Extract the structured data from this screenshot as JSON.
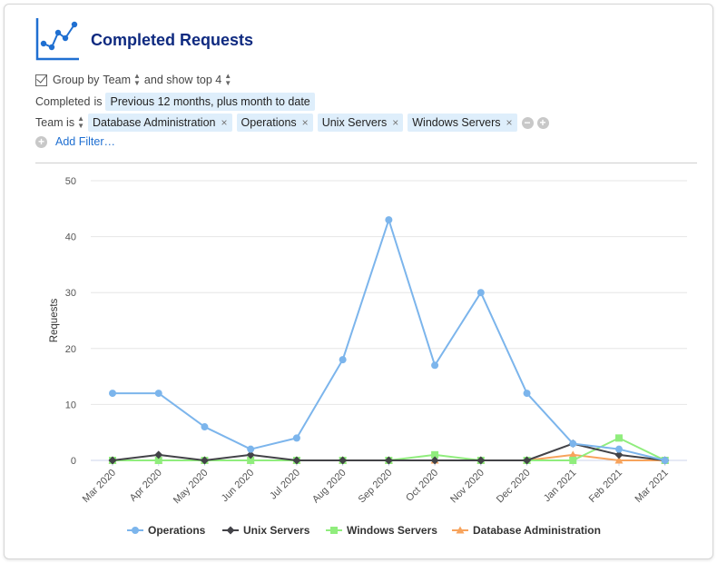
{
  "header": {
    "title": "Completed Requests",
    "icon": "line-chart-icon"
  },
  "group_row": {
    "prefix": "Group by",
    "group_value": "Team",
    "middle": "and show",
    "top_value": "top 4"
  },
  "completed_row": {
    "label": "Completed",
    "operator": "is",
    "value": "Previous 12 months, plus month to date"
  },
  "team_row": {
    "field": "Team is",
    "filters": [
      "Database Administration",
      "Operations",
      "Unix Servers",
      "Windows Servers"
    ],
    "remove_symbol": "×"
  },
  "add_filter_label": "Add Filter…",
  "chart_data": {
    "type": "line",
    "title": "",
    "xlabel": "",
    "ylabel": "Requests",
    "ylim": [
      0,
      50
    ],
    "yticks": [
      0,
      10,
      20,
      30,
      40,
      50
    ],
    "grid": true,
    "legend_position": "bottom",
    "categories": [
      "Mar 2020",
      "Apr 2020",
      "May 2020",
      "Jun 2020",
      "Jul 2020",
      "Aug 2020",
      "Sep 2020",
      "Oct 2020",
      "Nov 2020",
      "Dec 2020",
      "Jan 2021",
      "Feb 2021",
      "Mar 2021"
    ],
    "series": [
      {
        "name": "Operations",
        "color": "#7cb5ec",
        "marker": "circle",
        "values": [
          12,
          12,
          6,
          2,
          4,
          18,
          43,
          17,
          30,
          12,
          3,
          2,
          0
        ]
      },
      {
        "name": "Unix Servers",
        "color": "#434348",
        "marker": "diamond",
        "values": [
          0,
          1,
          0,
          1,
          0,
          0,
          0,
          0,
          0,
          0,
          3,
          1,
          0
        ]
      },
      {
        "name": "Windows Servers",
        "color": "#90ed7d",
        "marker": "square",
        "values": [
          0,
          0,
          0,
          0,
          0,
          0,
          0,
          1,
          0,
          0,
          0,
          4,
          0
        ]
      },
      {
        "name": "Database Administration",
        "color": "#f7a35c",
        "marker": "triangle",
        "values": [
          0,
          0,
          0,
          0,
          0,
          0,
          0,
          0,
          0,
          0,
          1,
          0,
          0
        ]
      }
    ],
    "legend_order": [
      "Operations",
      "Unix Servers",
      "Windows Servers",
      "Database Administration"
    ]
  }
}
